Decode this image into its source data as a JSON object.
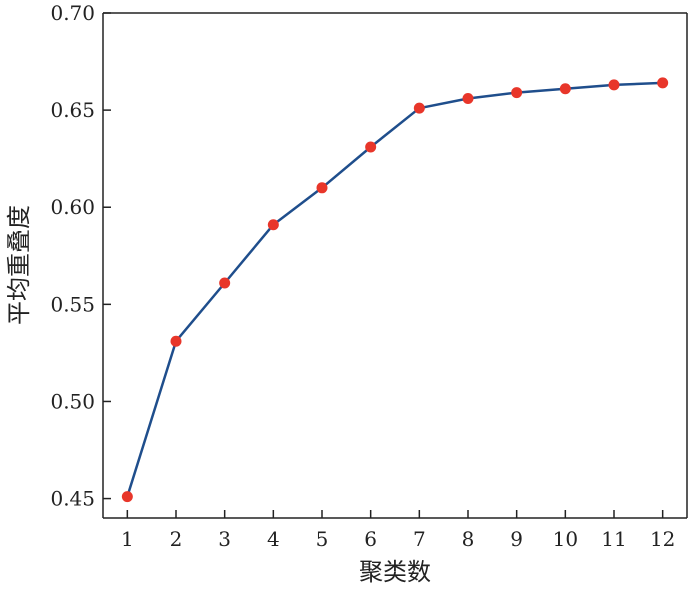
{
  "chart_data": {
    "type": "line",
    "title": "",
    "xlabel": "聚类数",
    "ylabel": "平均重叠度",
    "x": [
      1,
      2,
      3,
      4,
      5,
      6,
      7,
      8,
      9,
      10,
      11,
      12
    ],
    "xticks": [
      "1",
      "2",
      "3",
      "4",
      "5",
      "6",
      "7",
      "8",
      "9",
      "10",
      "11",
      "12"
    ],
    "xlim": [
      0.5,
      12.5
    ],
    "ylim": [
      0.44,
      0.7
    ],
    "yticks": [
      0.45,
      0.5,
      0.55,
      0.6,
      0.65,
      0.7
    ],
    "ytick_labels": [
      "0.45",
      "0.50",
      "0.55",
      "0.60",
      "0.65",
      "0.70"
    ],
    "grid": false,
    "series": [
      {
        "values": [
          0.451,
          0.531,
          0.561,
          0.591,
          0.61,
          0.631,
          0.651,
          0.656,
          0.659,
          0.661,
          0.663,
          0.664
        ],
        "line_color": "#1f4e8c",
        "marker_color": "#e8362a"
      }
    ]
  }
}
